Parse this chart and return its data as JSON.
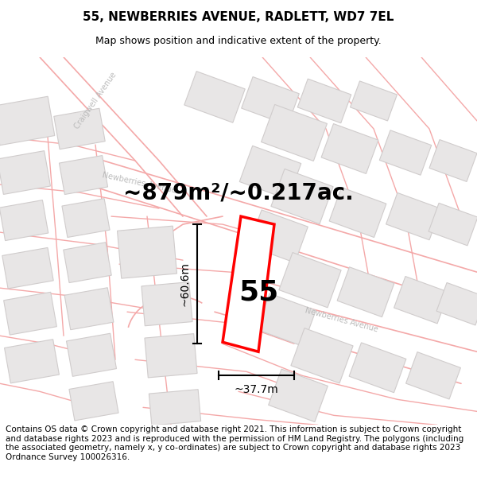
{
  "title": "55, NEWBERRIES AVENUE, RADLETT, WD7 7EL",
  "subtitle": "Map shows position and indicative extent of the property.",
  "area_text": "~879m²/~0.217ac.",
  "width_label": "~37.7m",
  "height_label": "~60.6m",
  "number_label": "55",
  "footer_text": "Contains OS data © Crown copyright and database right 2021. This information is subject to Crown copyright and database rights 2023 and is reproduced with the permission of HM Land Registry. The polygons (including the associated geometry, namely x, y co-ordinates) are subject to Crown copyright and database rights 2023 Ordnance Survey 100026316.",
  "bg_color": "#ffffff",
  "map_bg": "#f9f7f7",
  "road_outline_color": "#f4a8a8",
  "building_fill": "#e8e6e6",
  "building_edge": "#d0cccc",
  "title_fontsize": 11,
  "subtitle_fontsize": 9,
  "area_fontsize": 20,
  "number_fontsize": 26,
  "label_fontsize": 10,
  "footer_fontsize": 7.5,
  "road_label_color": "#bbbbbb",
  "road_label_fontsize": 7
}
